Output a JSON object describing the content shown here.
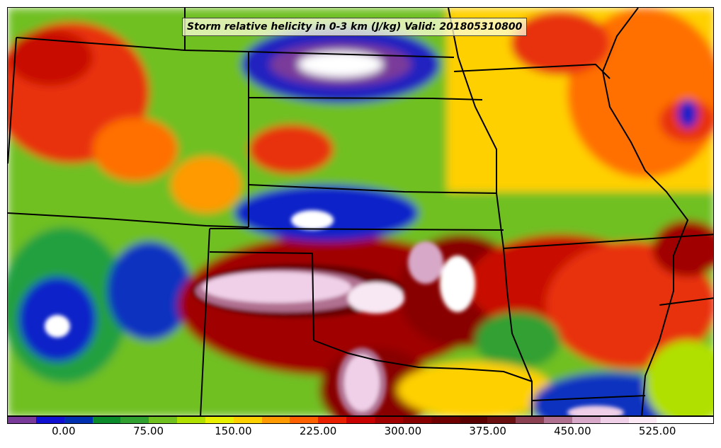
{
  "title": "Storm relative helicity in 0-3 km (J/kg) Valid: 201805310800",
  "colorbar": {
    "min": -50,
    "max": 575,
    "step": 25,
    "colors": [
      "#7a3a9a",
      "#1010d0",
      "#0030b0",
      "#0a8a2a",
      "#30a030",
      "#70c020",
      "#b0e000",
      "#e8f000",
      "#ffd000",
      "#ff9a00",
      "#ff6000",
      "#e82000",
      "#c80000",
      "#a00000",
      "#880000",
      "#700000",
      "#5a0000",
      "#6a1010",
      "#8a4050",
      "#b07090",
      "#d8a8c8",
      "#f0d0e8",
      "#fae8f5",
      "#ffffff",
      "#ffffff"
    ],
    "tick_labels": [
      "0.00",
      "75.00",
      "150.00",
      "225.00",
      "300.00",
      "375.00",
      "450.00",
      "525.00"
    ],
    "tick_values": [
      0,
      75,
      150,
      225,
      300,
      375,
      450,
      525
    ]
  },
  "map": {
    "background_color": "#70c020",
    "boundary_color": "#000000"
  }
}
